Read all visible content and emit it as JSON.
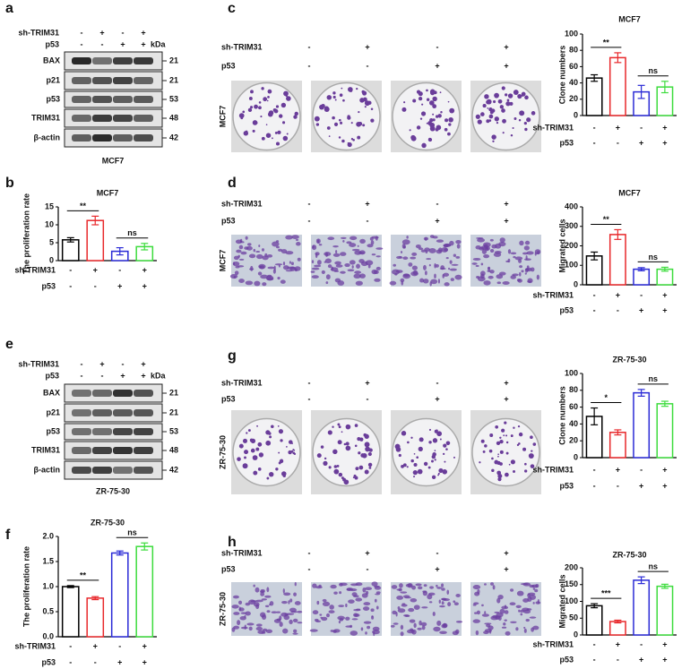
{
  "letters": [
    "a",
    "b",
    "c",
    "d",
    "e",
    "f",
    "g",
    "h"
  ],
  "conditions": {
    "kda_header": "kDa",
    "rows": [
      {
        "label": "sh-TRIM31",
        "signs": [
          "-",
          "+",
          "-",
          "+"
        ]
      },
      {
        "label": "p53",
        "signs": [
          "-",
          "-",
          "+",
          "+"
        ]
      }
    ]
  },
  "blots": [
    {
      "caption": "MCF7",
      "bands": [
        {
          "label": "BAX",
          "kda": 21
        },
        {
          "label": "p21",
          "kda": 21
        },
        {
          "label": "p53",
          "kda": 53
        },
        {
          "label": "TRIM31",
          "kda": 48
        },
        {
          "label": "β-actin",
          "kda": 42
        }
      ]
    },
    {
      "caption": "ZR-75-30",
      "bands": [
        {
          "label": "BAX",
          "kda": 21
        },
        {
          "label": "p21",
          "kda": 21
        },
        {
          "label": "p53",
          "kda": 53
        },
        {
          "label": "TRIM31",
          "kda": 48
        },
        {
          "label": "β-actin",
          "kda": 42
        }
      ]
    }
  ],
  "image_panels": [
    {
      "side_label": "MCF7",
      "kind": "dish"
    },
    {
      "side_label": "MCF7",
      "kind": "migration"
    },
    {
      "side_label": "ZR-75-30",
      "kind": "dish"
    },
    {
      "side_label": "ZR-75-30",
      "kind": "migration"
    }
  ],
  "chart_data": [
    {
      "type": "bar",
      "title": "MCF7",
      "y_label": "The proliferation rate",
      "values": [
        5.8,
        11.2,
        2.6,
        3.9
      ],
      "errors": [
        0.6,
        1.2,
        1.0,
        0.9
      ],
      "colors": [
        "#000000",
        "#e8282b",
        "#2b2bd6",
        "#3ddc3d"
      ],
      "ylim": [
        0,
        15
      ],
      "yticks": [
        0,
        5,
        10,
        15
      ],
      "annotations": [
        "**",
        "ns"
      ]
    },
    {
      "type": "bar",
      "title": "MCF7",
      "y_label": "Clone numbers",
      "values": [
        46,
        71,
        29,
        35
      ],
      "errors": [
        4,
        6,
        8,
        7
      ],
      "colors": [
        "#000000",
        "#e8282b",
        "#2b2bd6",
        "#3ddc3d"
      ],
      "ylim": [
        0,
        100
      ],
      "yticks": [
        0,
        20,
        40,
        60,
        80,
        100
      ],
      "annotations": [
        "**",
        "ns"
      ]
    },
    {
      "type": "bar",
      "title": "MCF7",
      "y_label": "Migrated cells",
      "values": [
        148,
        258,
        80,
        80
      ],
      "errors": [
        20,
        25,
        8,
        10
      ],
      "colors": [
        "#000000",
        "#e8282b",
        "#2b2bd6",
        "#3ddc3d"
      ],
      "ylim": [
        0,
        400
      ],
      "yticks": [
        0,
        100,
        200,
        300,
        400
      ],
      "annotations": [
        "**",
        "ns"
      ]
    },
    {
      "type": "bar",
      "title": "ZR-75-30",
      "y_label": "The proliferation rate",
      "values": [
        1.0,
        0.77,
        1.67,
        1.8
      ],
      "errors": [
        0.02,
        0.03,
        0.04,
        0.07
      ],
      "colors": [
        "#000000",
        "#e8282b",
        "#2b2bd6",
        "#3ddc3d"
      ],
      "ylim": [
        0,
        2
      ],
      "yticks": [
        {
          "value": 0,
          "label": "0.0"
        },
        {
          "value": 0.5,
          "label": "0.5"
        },
        {
          "value": 1,
          "label": "1.0"
        },
        {
          "value": 1.5,
          "label": "1.5"
        },
        {
          "value": 2,
          "label": "2.0"
        }
      ],
      "annotations": [
        "**",
        "ns"
      ]
    },
    {
      "type": "bar",
      "title": "ZR-75-30",
      "y_label": "Clone numbers",
      "values": [
        49,
        30,
        77,
        64
      ],
      "errors": [
        10,
        3,
        4,
        3
      ],
      "colors": [
        "#000000",
        "#e8282b",
        "#2b2bd6",
        "#3ddc3d"
      ],
      "ylim": [
        0,
        100
      ],
      "yticks": [
        0,
        20,
        40,
        60,
        80,
        100
      ],
      "annotations": [
        "*",
        "ns"
      ]
    },
    {
      "type": "bar",
      "title": "ZR-75-30",
      "y_label": "Migrated cells",
      "values": [
        87,
        40,
        163,
        145
      ],
      "errors": [
        6,
        4,
        10,
        6
      ],
      "colors": [
        "#000000",
        "#e8282b",
        "#2b2bd6",
        "#3ddc3d"
      ],
      "ylim": [
        0,
        200
      ],
      "yticks": [
        0,
        50,
        100,
        150,
        200
      ],
      "annotations": [
        "***",
        "ns"
      ]
    }
  ]
}
